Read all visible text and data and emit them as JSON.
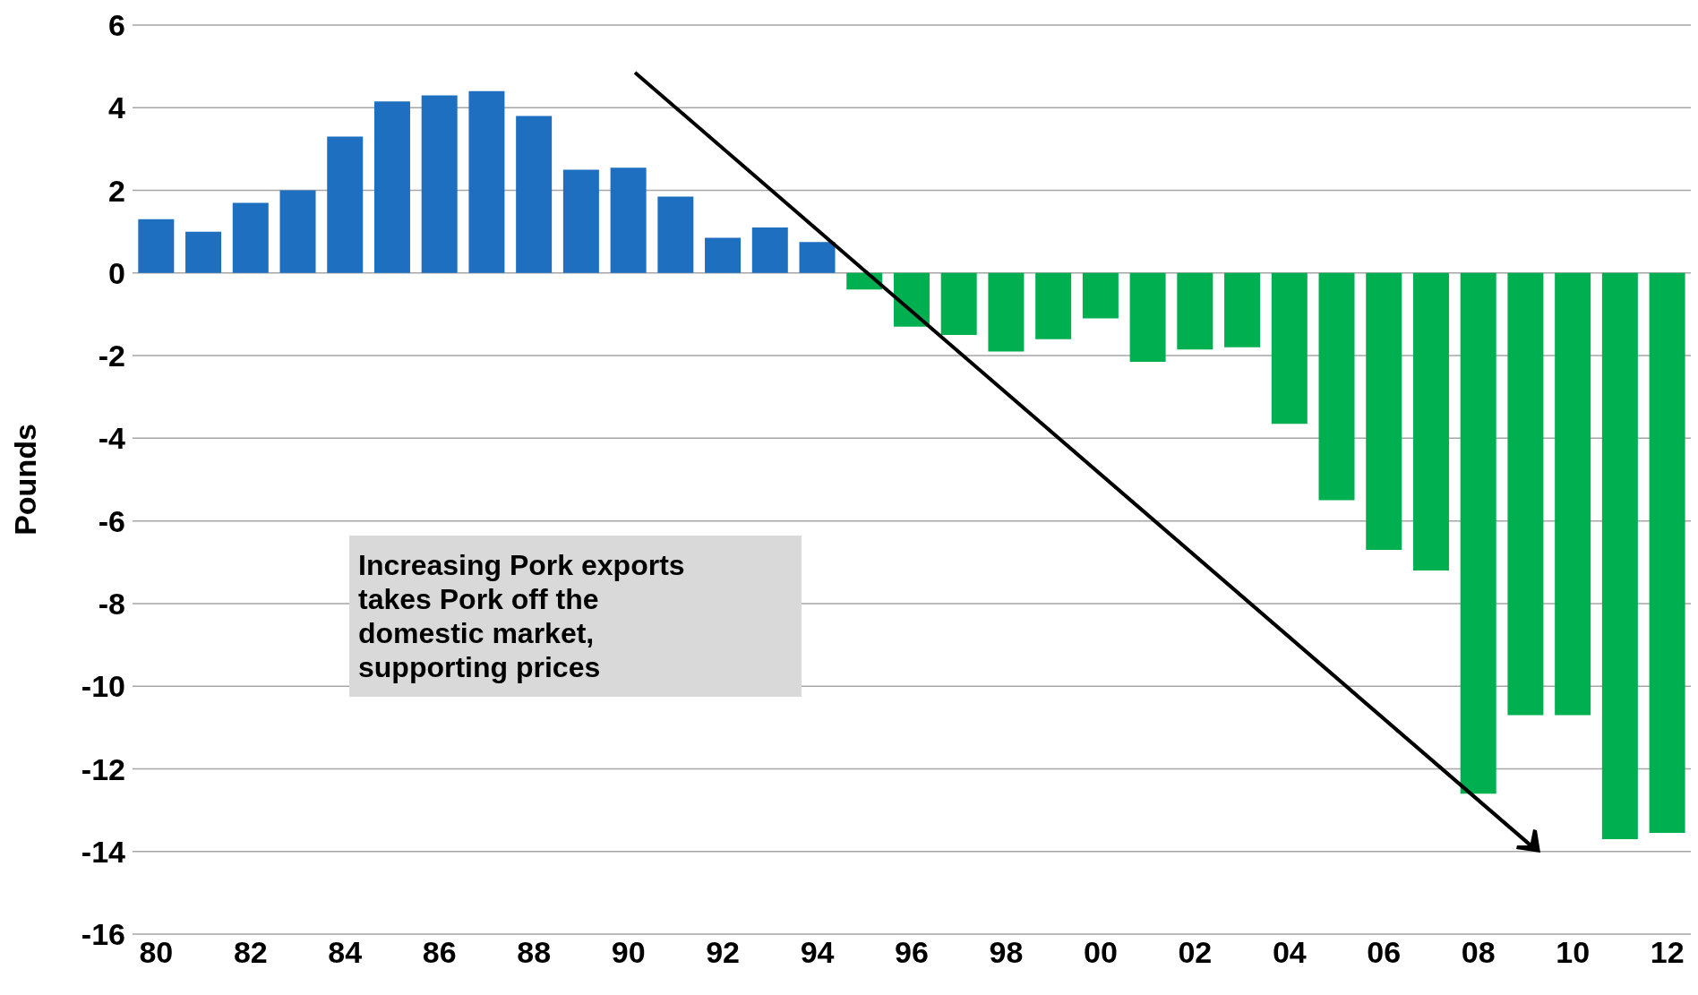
{
  "chart_data": {
    "type": "bar",
    "ylabel": "Pounds",
    "categories": [
      "80",
      null,
      "82",
      null,
      "84",
      null,
      "86",
      null,
      "88",
      null,
      "90",
      null,
      "92",
      null,
      "94",
      null,
      "96",
      null,
      "98",
      null,
      "00",
      null,
      "02",
      null,
      "04",
      null,
      "06",
      null,
      "08",
      null,
      "10",
      null,
      "12"
    ],
    "values": [
      1.3,
      1.0,
      1.7,
      2.0,
      3.3,
      4.15,
      4.3,
      4.4,
      3.8,
      2.5,
      2.55,
      1.85,
      0.85,
      1.1,
      0.75,
      -0.4,
      -1.3,
      -1.5,
      -1.9,
      -1.6,
      -1.1,
      -2.15,
      -1.85,
      -1.8,
      -3.65,
      -5.5,
      -6.7,
      -7.2,
      -12.6,
      -10.7,
      -10.7,
      -13.7,
      -13.55
    ],
    "colors": [
      "#1f6fc0",
      "#1f6fc0",
      "#1f6fc0",
      "#1f6fc0",
      "#1f6fc0",
      "#1f6fc0",
      "#1f6fc0",
      "#1f6fc0",
      "#1f6fc0",
      "#1f6fc0",
      "#1f6fc0",
      "#1f6fc0",
      "#1f6fc0",
      "#1f6fc0",
      "#1f6fc0",
      "#00b050",
      "#00b050",
      "#00b050",
      "#00b050",
      "#00b050",
      "#00b050",
      "#00b050",
      "#00b050",
      "#00b050",
      "#00b050",
      "#00b050",
      "#00b050",
      "#00b050",
      "#00b050",
      "#00b050",
      "#00b050",
      "#00b050",
      "#00b050"
    ],
    "ylim": [
      -16,
      6
    ],
    "yticks": [
      -16,
      -14,
      -12,
      -10,
      -8,
      -6,
      -4,
      -2,
      0,
      2,
      4,
      6
    ],
    "grid": "y",
    "annotations": [
      "Increasing Pork exports takes Pork off the domestic market, supporting prices"
    ]
  }
}
